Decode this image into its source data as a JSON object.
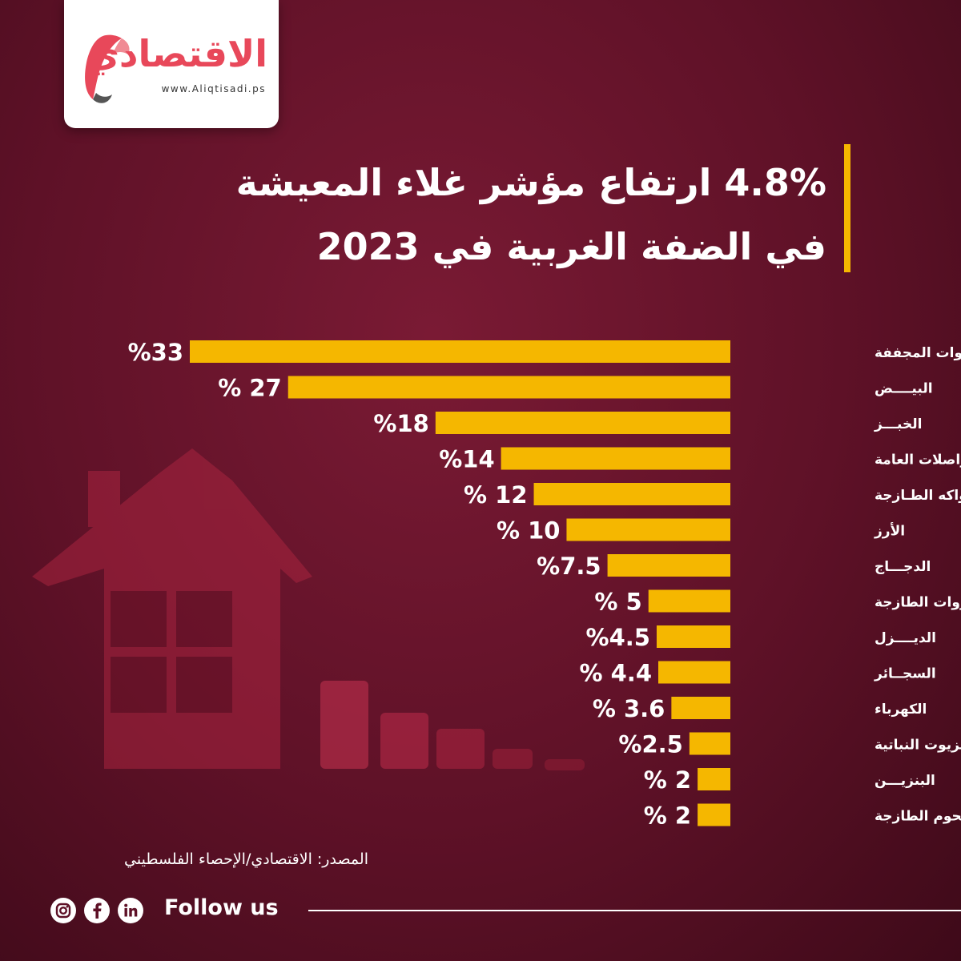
{
  "logo": {
    "name": "الاقتصادي",
    "url": "www.Aliqtisadi.ps"
  },
  "title": {
    "line1": "4.8% ارتفاع مؤشر غلاء المعيشة",
    "line2": "في الضفة الغربية  في 2023"
  },
  "colors": {
    "bar": "#f5b700",
    "background": "#5e1127",
    "logo_accent": "#e8485a"
  },
  "chart_data": {
    "type": "bar",
    "orientation": "horizontal",
    "title": "4.8% ارتفاع مؤشر غلاء المعيشة في الضفة الغربية في 2023",
    "xlabel": "",
    "ylabel": "",
    "xlim": [
      0,
      33
    ],
    "grid": false,
    "categories": [
      "الخضروات المجففة",
      "البيــــض",
      "الخبـــز",
      "المواصلات العامة",
      "الفواكه الطـازجة",
      "الأرز",
      "الدجـــاج",
      "الخضروات الطازجة",
      "الديــــزل",
      "السجــائر",
      "الكهرباء",
      "الزيوت النباتية",
      "البنزيـــن",
      "اللحوم الطازجة"
    ],
    "values": [
      33,
      27,
      18,
      14,
      12,
      10,
      7.5,
      5,
      4.5,
      4.4,
      3.6,
      2.5,
      2,
      2
    ],
    "value_labels": [
      "%33",
      "% 27",
      "%18",
      "%14",
      "% 12",
      "% 10",
      "%7.5",
      "% 5",
      "%4.5",
      "% 4.4",
      "% 3.6",
      "%2.5",
      "% 2",
      "% 2"
    ]
  },
  "footer": {
    "source": "المصدر: الاقتصادي/الإحصاء الفلسطيني",
    "follow": "Follow us"
  },
  "icons": [
    "instagram-icon",
    "facebook-icon",
    "linkedin-icon"
  ]
}
